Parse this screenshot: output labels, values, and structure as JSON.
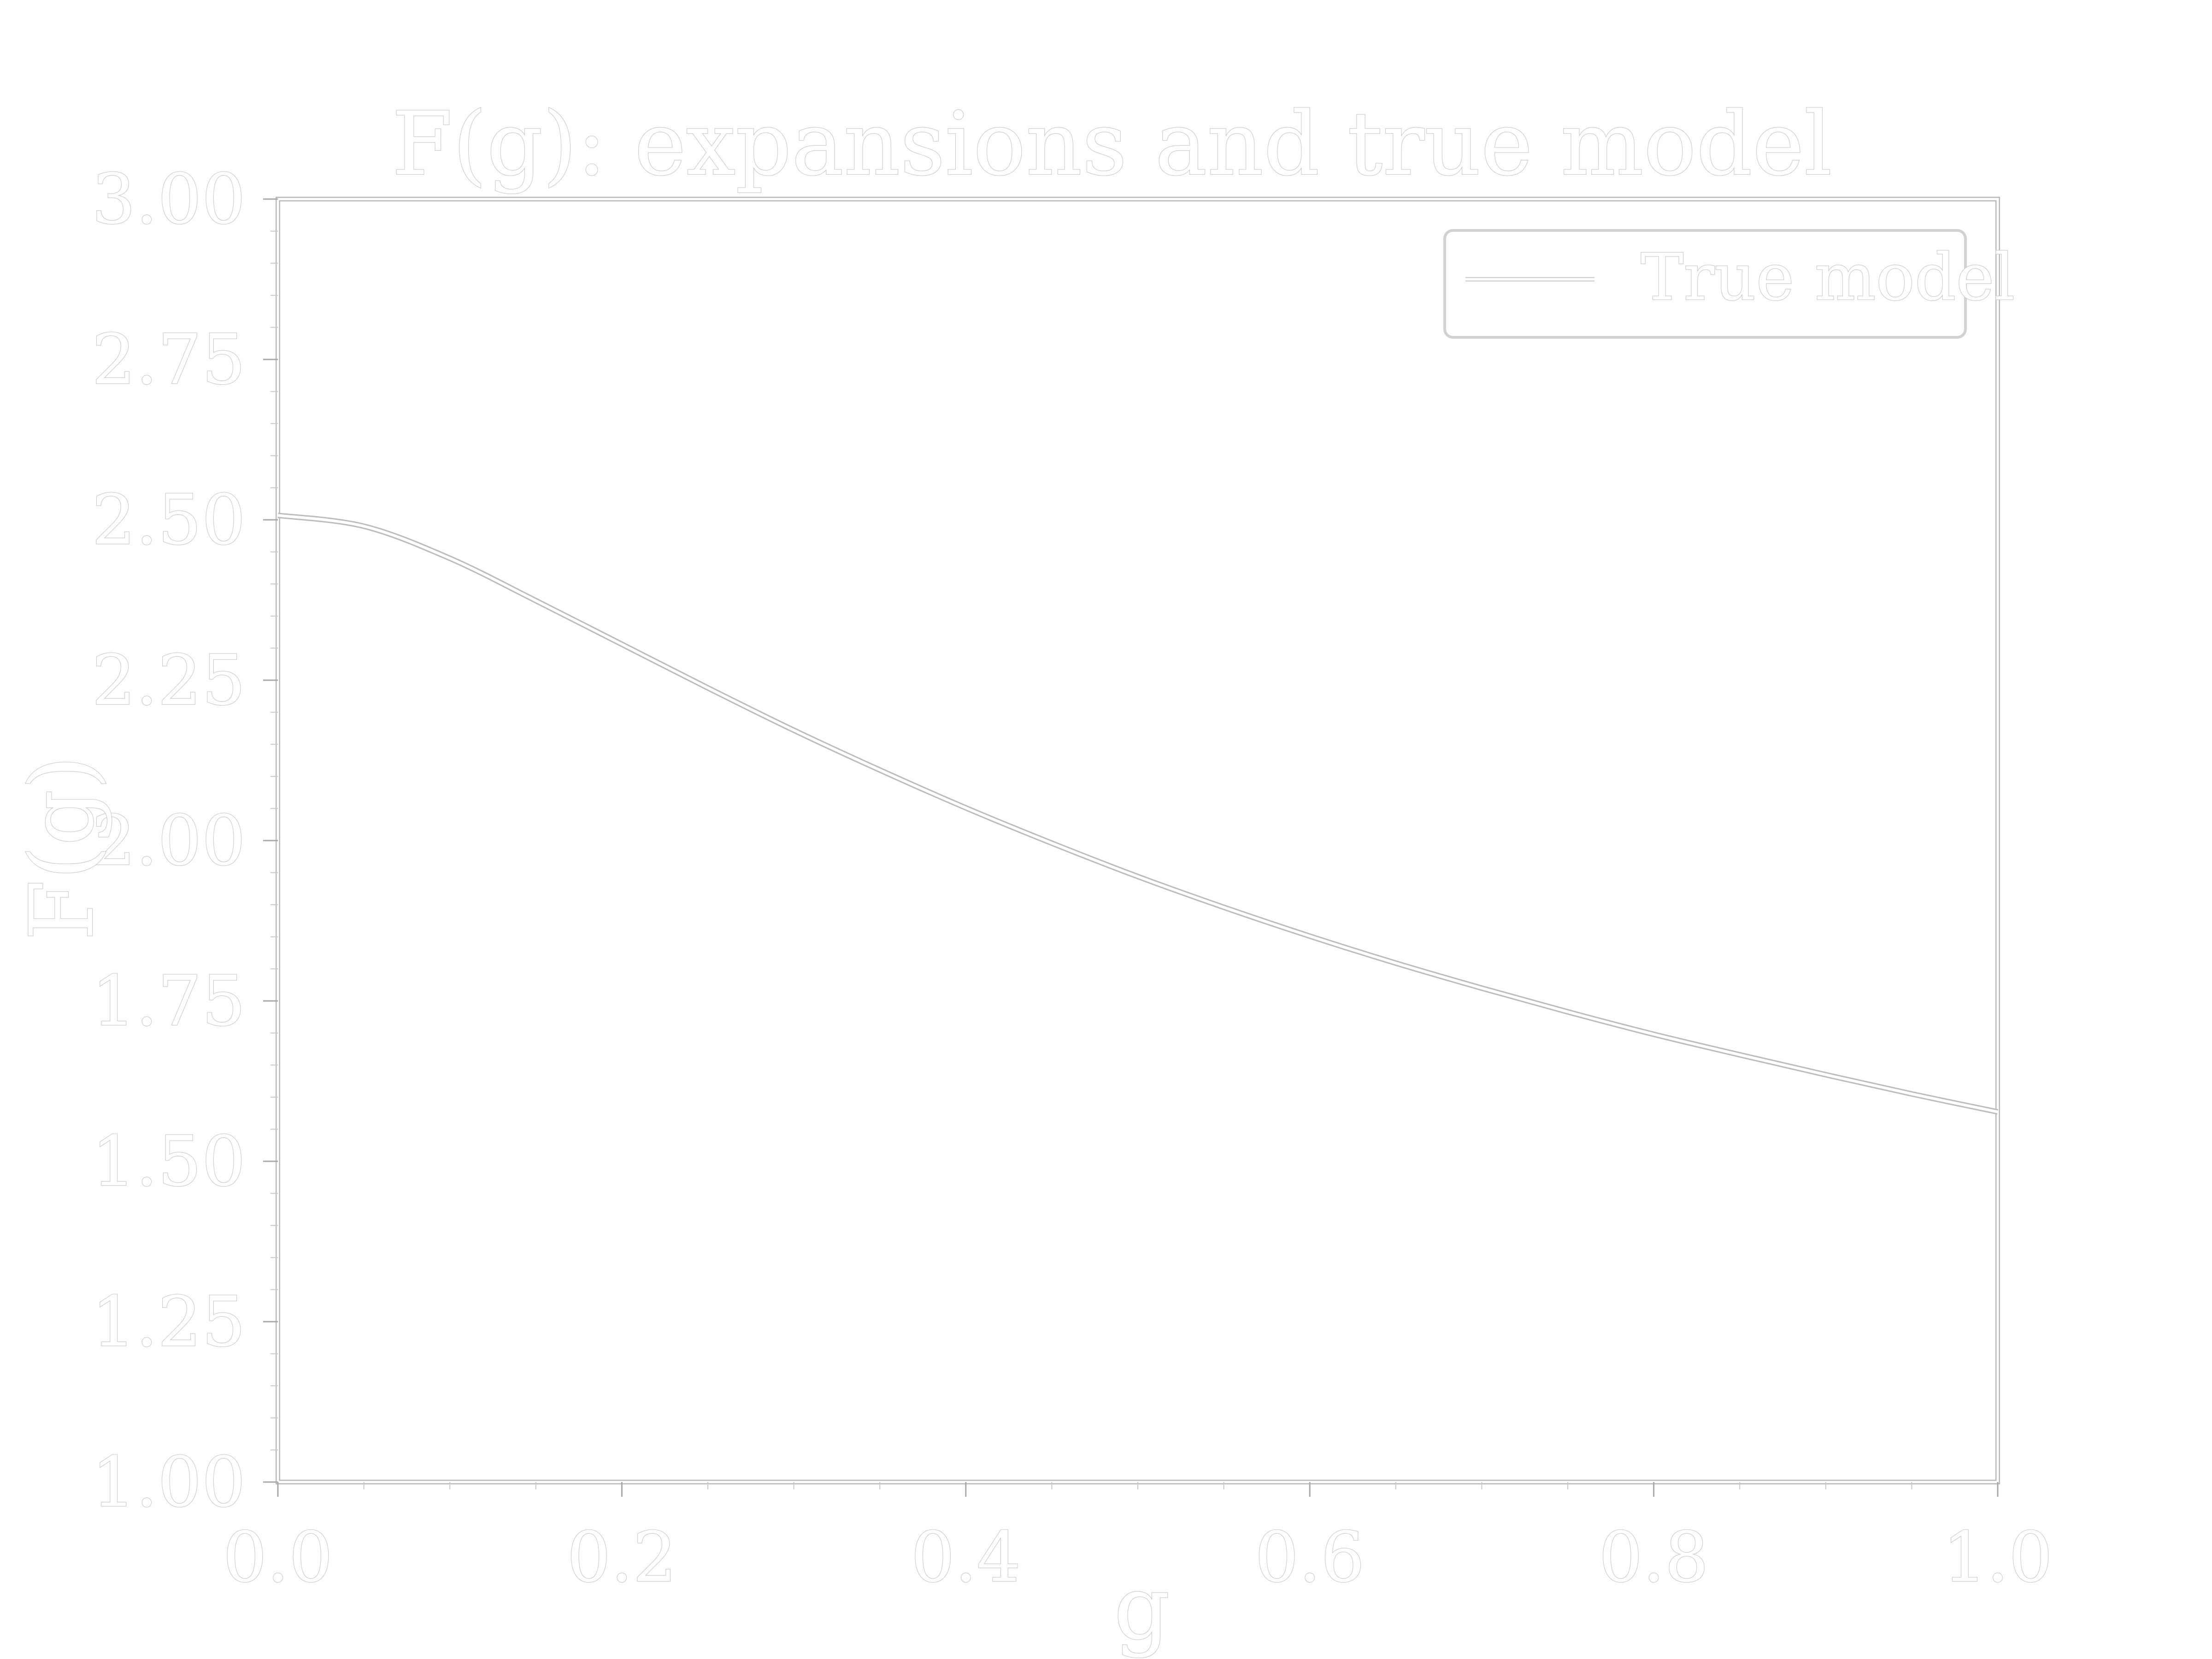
{
  "chart_data": {
    "type": "line",
    "title": "F(g): expansions and true model",
    "xlabel": "g",
    "ylabel": "F(g)",
    "xlim": [
      0.0,
      1.0
    ],
    "ylim": [
      1.0,
      3.0
    ],
    "x_ticks": [
      "0.0",
      "0.2",
      "0.4",
      "0.6",
      "0.8",
      "1.0"
    ],
    "y_ticks": [
      "1.00",
      "1.25",
      "1.50",
      "1.75",
      "2.00",
      "2.25",
      "2.50",
      "2.75",
      "3.00"
    ],
    "x_tick_values": [
      0.0,
      0.2,
      0.4,
      0.6,
      0.8,
      1.0
    ],
    "y_tick_values": [
      1.0,
      1.25,
      1.5,
      1.75,
      2.0,
      2.25,
      2.5,
      2.75,
      3.0
    ],
    "grid": false,
    "legend": {
      "position": "top-right",
      "entries": [
        "True model"
      ]
    },
    "series": [
      {
        "name": "True model",
        "x": [
          0.0,
          0.05,
          0.1,
          0.15,
          0.2,
          0.25,
          0.3,
          0.35,
          0.4,
          0.45,
          0.5,
          0.55,
          0.6,
          0.65,
          0.7,
          0.75,
          0.8,
          0.85,
          0.9,
          0.95,
          1.0
        ],
        "y": [
          2.507,
          2.49,
          2.44,
          2.374,
          2.306,
          2.238,
          2.172,
          2.11,
          2.051,
          1.996,
          1.944,
          1.896,
          1.851,
          1.809,
          1.77,
          1.733,
          1.698,
          1.666,
          1.635,
          1.605,
          1.577
        ]
      }
    ]
  }
}
